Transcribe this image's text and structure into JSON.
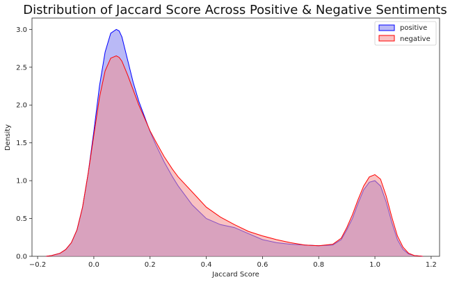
{
  "chart_data": {
    "type": "area",
    "title": "Distribution of Jaccard Score Across Positive & Negative Sentiments",
    "xlabel": "Jaccard Score",
    "ylabel": "Density",
    "xlim": [
      -0.22,
      1.23
    ],
    "ylim": [
      0,
      3.15
    ],
    "xticks": [
      -0.2,
      0.0,
      0.2,
      0.4,
      0.6,
      0.8,
      1.0,
      1.2
    ],
    "xtick_labels": [
      "−0.2",
      "0.0",
      "0.2",
      "0.4",
      "0.6",
      "0.8",
      "1.0",
      "1.2"
    ],
    "yticks": [
      0.0,
      0.5,
      1.0,
      1.5,
      2.0,
      2.5,
      3.0
    ],
    "ytick_labels": [
      "0.0",
      "0.5",
      "1.0",
      "1.5",
      "2.0",
      "2.5",
      "3.0"
    ],
    "grid": false,
    "legend_position": "top-right",
    "series": [
      {
        "name": "positive",
        "line_color": "#0000ff",
        "fill_color": "#8080ee",
        "x": [
          -0.17,
          -0.15,
          -0.12,
          -0.1,
          -0.08,
          -0.06,
          -0.04,
          -0.02,
          0.0,
          0.02,
          0.04,
          0.06,
          0.08,
          0.09,
          0.1,
          0.12,
          0.14,
          0.16,
          0.18,
          0.2,
          0.22,
          0.25,
          0.28,
          0.3,
          0.35,
          0.4,
          0.45,
          0.5,
          0.55,
          0.6,
          0.65,
          0.7,
          0.75,
          0.8,
          0.85,
          0.88,
          0.9,
          0.92,
          0.94,
          0.96,
          0.98,
          1.0,
          1.02,
          1.04,
          1.06,
          1.08,
          1.1,
          1.12,
          1.14,
          1.17
        ],
        "y": [
          0.0,
          0.01,
          0.04,
          0.09,
          0.18,
          0.35,
          0.65,
          1.1,
          1.65,
          2.25,
          2.7,
          2.95,
          3.0,
          2.98,
          2.9,
          2.6,
          2.3,
          2.05,
          1.85,
          1.65,
          1.48,
          1.25,
          1.05,
          0.93,
          0.68,
          0.5,
          0.42,
          0.38,
          0.3,
          0.22,
          0.18,
          0.16,
          0.15,
          0.14,
          0.15,
          0.22,
          0.35,
          0.5,
          0.7,
          0.88,
          0.98,
          1.0,
          0.93,
          0.72,
          0.45,
          0.22,
          0.09,
          0.03,
          0.01,
          0.0
        ]
      },
      {
        "name": "negative",
        "line_color": "#ff0000",
        "fill_color": "#f49090",
        "x": [
          -0.17,
          -0.15,
          -0.12,
          -0.1,
          -0.08,
          -0.06,
          -0.04,
          -0.02,
          0.0,
          0.02,
          0.04,
          0.06,
          0.08,
          0.09,
          0.1,
          0.12,
          0.14,
          0.16,
          0.18,
          0.2,
          0.22,
          0.25,
          0.28,
          0.3,
          0.35,
          0.4,
          0.45,
          0.5,
          0.55,
          0.6,
          0.65,
          0.7,
          0.75,
          0.8,
          0.85,
          0.88,
          0.9,
          0.92,
          0.94,
          0.96,
          0.98,
          1.0,
          1.02,
          1.04,
          1.06,
          1.08,
          1.1,
          1.12,
          1.14,
          1.17
        ],
        "y": [
          0.0,
          0.01,
          0.04,
          0.09,
          0.18,
          0.35,
          0.65,
          1.1,
          1.6,
          2.1,
          2.45,
          2.62,
          2.65,
          2.63,
          2.58,
          2.4,
          2.2,
          2.0,
          1.83,
          1.66,
          1.52,
          1.32,
          1.15,
          1.05,
          0.85,
          0.65,
          0.52,
          0.42,
          0.33,
          0.27,
          0.22,
          0.18,
          0.15,
          0.14,
          0.16,
          0.24,
          0.38,
          0.55,
          0.75,
          0.93,
          1.05,
          1.08,
          1.02,
          0.8,
          0.52,
          0.27,
          0.12,
          0.04,
          0.01,
          0.0
        ]
      }
    ]
  }
}
